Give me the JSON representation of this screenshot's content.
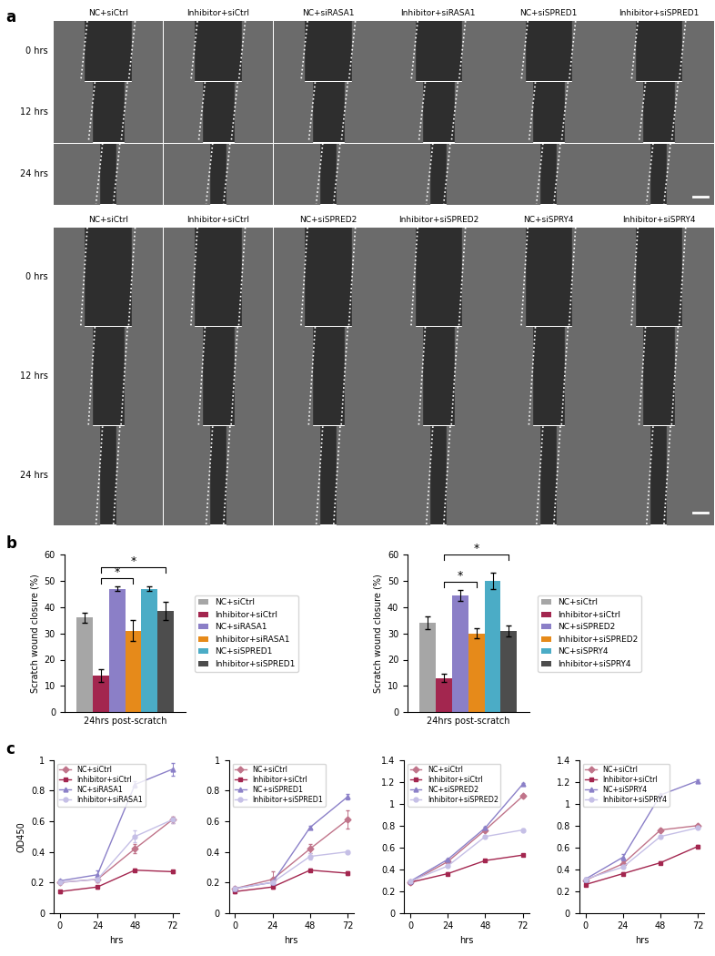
{
  "panel_labels": [
    "a",
    "b",
    "c"
  ],
  "image_grids": [
    {
      "columns": [
        "NC+siCtrl",
        "Inhibitor+siCtrl",
        "NC+siRASA1",
        "Inhibitor+siRASA1",
        "NC+siSPRED1",
        "Inhibitor+siSPRED1"
      ],
      "rows": [
        "0 hrs",
        "12 hrs",
        "24 hrs"
      ]
    },
    {
      "columns": [
        "NC+siCtrl",
        "Inhibitor+siCtrl",
        "NC+siSPRED2",
        "Inhibitor+siSPRED2",
        "NC+siSPRY4",
        "Inhibitor+siSPRY4"
      ],
      "rows": [
        "0 hrs",
        "12 hrs",
        "24 hrs"
      ]
    }
  ],
  "chart_data": [
    {
      "type": "bar",
      "ylabel": "Scratch wound closure (%)",
      "categories": [
        "24hrs post-scratch"
      ],
      "ylim": [
        0,
        60
      ],
      "yticks": [
        0,
        10,
        20,
        30,
        40,
        50,
        60
      ],
      "legend": "right",
      "series": [
        {
          "name": "NC+siCtrl",
          "color": "#a6a6a6",
          "values": [
            36
          ],
          "errors": [
            2
          ]
        },
        {
          "name": "Inhibitor+siCtrl",
          "color": "#a3264f",
          "values": [
            14
          ],
          "errors": [
            2.5
          ]
        },
        {
          "name": "NC+siRASA1",
          "color": "#8b7fc7",
          "values": [
            47
          ],
          "errors": [
            1
          ]
        },
        {
          "name": "Inhibitor+siRASA1",
          "color": "#e68a1a",
          "values": [
            31
          ],
          "errors": [
            4
          ]
        },
        {
          "name": "NC+siSPRED1",
          "color": "#4bacc6",
          "values": [
            47
          ],
          "errors": [
            1
          ]
        },
        {
          "name": "Inhibitor+siSPRED1",
          "color": "#4d4d4d",
          "values": [
            38.5
          ],
          "errors": [
            3.5
          ]
        }
      ],
      "annotations": [
        {
          "from": "Inhibitor+siCtrl",
          "to": "Inhibitor+siRASA1",
          "label": "*"
        },
        {
          "from": "Inhibitor+siCtrl",
          "to": "Inhibitor+siSPRED1",
          "label": "*"
        }
      ]
    },
    {
      "type": "bar",
      "ylabel": "Scratch wound closure (%)",
      "categories": [
        "24hrs post-scratch"
      ],
      "ylim": [
        0,
        60
      ],
      "yticks": [
        0,
        10,
        20,
        30,
        40,
        50,
        60
      ],
      "legend": "right",
      "series": [
        {
          "name": "NC+siCtrl",
          "color": "#a6a6a6",
          "values": [
            34
          ],
          "errors": [
            2.5
          ]
        },
        {
          "name": "Inhibitor+siCtrl",
          "color": "#a3264f",
          "values": [
            13
          ],
          "errors": [
            1.5
          ]
        },
        {
          "name": "NC+siSPRED2",
          "color": "#8b7fc7",
          "values": [
            44.5
          ],
          "errors": [
            2
          ]
        },
        {
          "name": "Inhibitor+siSPRED2",
          "color": "#e68a1a",
          "values": [
            30
          ],
          "errors": [
            2
          ]
        },
        {
          "name": "NC+siSPRY4",
          "color": "#4bacc6",
          "values": [
            50
          ],
          "errors": [
            3
          ]
        },
        {
          "name": "Inhibitor+siSPRY4",
          "color": "#4d4d4d",
          "values": [
            31
          ],
          "errors": [
            2
          ]
        }
      ],
      "annotations": [
        {
          "from": "Inhibitor+siCtrl",
          "to": "Inhibitor+siSPRED2",
          "label": "*"
        },
        {
          "from": "Inhibitor+siCtrl",
          "to": "Inhibitor+siSPRY4",
          "label": "*"
        }
      ]
    },
    {
      "type": "line",
      "xlabel": "hrs",
      "ylabel": "OD450",
      "x": [
        0,
        24,
        48,
        72
      ],
      "xlim": [
        -4,
        76
      ],
      "xticks": [
        0,
        24,
        48,
        72
      ],
      "ylim": [
        0,
        1
      ],
      "yticks": [
        0,
        0.2,
        0.4,
        0.6,
        0.8,
        1
      ],
      "legend": "upper left",
      "series": [
        {
          "name": "NC+siCtrl",
          "color": "#c0748a",
          "marker": "diamond",
          "values": [
            0.2,
            0.22,
            0.42,
            0.61
          ],
          "errors": [
            0.01,
            0.02,
            0.03,
            0.02
          ]
        },
        {
          "name": "Inhibitor+siCtrl",
          "color": "#a3264f",
          "marker": "square",
          "values": [
            0.14,
            0.17,
            0.28,
            0.27
          ],
          "errors": [
            0.01,
            0.01,
            0.01,
            0.01
          ]
        },
        {
          "name": "NC+siRASA1",
          "color": "#8b80c8",
          "marker": "triangle",
          "values": [
            0.21,
            0.25,
            0.84,
            0.94
          ],
          "errors": [
            0.01,
            0.03,
            0.02,
            0.04
          ]
        },
        {
          "name": "Inhibitor+siRASA1",
          "color": "#c5bfe6",
          "marker": "circle",
          "values": [
            0.2,
            0.22,
            0.5,
            0.61
          ],
          "errors": [
            0.01,
            0.02,
            0.04,
            0.02
          ]
        }
      ]
    },
    {
      "type": "line",
      "xlabel": "hrs",
      "x": [
        0,
        24,
        48,
        72
      ],
      "xlim": [
        -4,
        76
      ],
      "xticks": [
        0,
        24,
        48,
        72
      ],
      "ylim": [
        0,
        1
      ],
      "yticks": [
        0,
        0.2,
        0.4,
        0.6,
        0.8,
        1
      ],
      "legend": "upper left",
      "series": [
        {
          "name": "NC+siCtrl",
          "color": "#c0748a",
          "marker": "diamond",
          "values": [
            0.16,
            0.22,
            0.42,
            0.61
          ],
          "errors": [
            0.01,
            0.05,
            0.03,
            0.06
          ]
        },
        {
          "name": "Inhibitor+siCtrl",
          "color": "#a3264f",
          "marker": "square",
          "values": [
            0.14,
            0.17,
            0.28,
            0.26
          ],
          "errors": [
            0.01,
            0.01,
            0.01,
            0.01
          ]
        },
        {
          "name": "NC+siSPRED1",
          "color": "#8b80c8",
          "marker": "triangle",
          "values": [
            0.16,
            0.2,
            0.56,
            0.76
          ],
          "errors": [
            0.01,
            0.02,
            0.01,
            0.02
          ]
        },
        {
          "name": "Inhibitor+siSPRED1",
          "color": "#c5bfe6",
          "marker": "circle",
          "values": [
            0.16,
            0.2,
            0.37,
            0.4
          ],
          "errors": [
            0.01,
            0.02,
            0.02,
            0.01
          ]
        }
      ]
    },
    {
      "type": "line",
      "xlabel": "hrs",
      "x": [
        0,
        24,
        48,
        72
      ],
      "xlim": [
        -4,
        76
      ],
      "xticks": [
        0,
        24,
        48,
        72
      ],
      "ylim": [
        0,
        1.4
      ],
      "yticks": [
        0,
        0.2,
        0.4,
        0.6,
        0.8,
        1,
        1.2,
        1.4
      ],
      "legend": "upper left",
      "series": [
        {
          "name": "NC+siCtrl",
          "color": "#c0748a",
          "marker": "diamond",
          "values": [
            0.28,
            0.47,
            0.76,
            1.07
          ],
          "errors": [
            0.01,
            0.01,
            0.01,
            0.01
          ]
        },
        {
          "name": "Inhibitor+siCtrl",
          "color": "#a3264f",
          "marker": "square",
          "values": [
            0.28,
            0.36,
            0.48,
            0.53
          ],
          "errors": [
            0.01,
            0.01,
            0.01,
            0.01
          ]
        },
        {
          "name": "NC+siSPRED2",
          "color": "#8b80c8",
          "marker": "triangle",
          "values": [
            0.29,
            0.49,
            0.78,
            1.18
          ],
          "errors": [
            0.01,
            0.01,
            0.01,
            0.01
          ]
        },
        {
          "name": "Inhibitor+siSPRED2",
          "color": "#c5bfe6",
          "marker": "circle",
          "values": [
            0.29,
            0.43,
            0.7,
            0.76
          ],
          "errors": [
            0.01,
            0.01,
            0.01,
            0.01
          ]
        }
      ]
    },
    {
      "type": "line",
      "xlabel": "hrs",
      "x": [
        0,
        24,
        48,
        72
      ],
      "xlim": [
        -4,
        76
      ],
      "xticks": [
        0,
        24,
        48,
        72
      ],
      "ylim": [
        0,
        1.4
      ],
      "yticks": [
        0,
        0.2,
        0.4,
        0.6,
        0.8,
        1,
        1.2,
        1.4
      ],
      "legend": "upper left",
      "series": [
        {
          "name": "NC+siCtrl",
          "color": "#c0748a",
          "marker": "diamond",
          "values": [
            0.3,
            0.45,
            0.76,
            0.8
          ],
          "errors": [
            0.01,
            0.02,
            0.01,
            0.01
          ]
        },
        {
          "name": "Inhibitor+siCtrl",
          "color": "#a3264f",
          "marker": "square",
          "values": [
            0.26,
            0.36,
            0.46,
            0.61
          ],
          "errors": [
            0.01,
            0.01,
            0.01,
            0.01
          ]
        },
        {
          "name": "NC+siSPRY4",
          "color": "#8b80c8",
          "marker": "triangle",
          "values": [
            0.31,
            0.51,
            1.08,
            1.21
          ],
          "errors": [
            0.01,
            0.03,
            0.01,
            0.01
          ]
        },
        {
          "name": "Inhibitor+siSPRY4",
          "color": "#c5bfe6",
          "marker": "circle",
          "values": [
            0.31,
            0.42,
            0.7,
            0.78
          ],
          "errors": [
            0.01,
            0.01,
            0.01,
            0.01
          ]
        }
      ]
    }
  ]
}
